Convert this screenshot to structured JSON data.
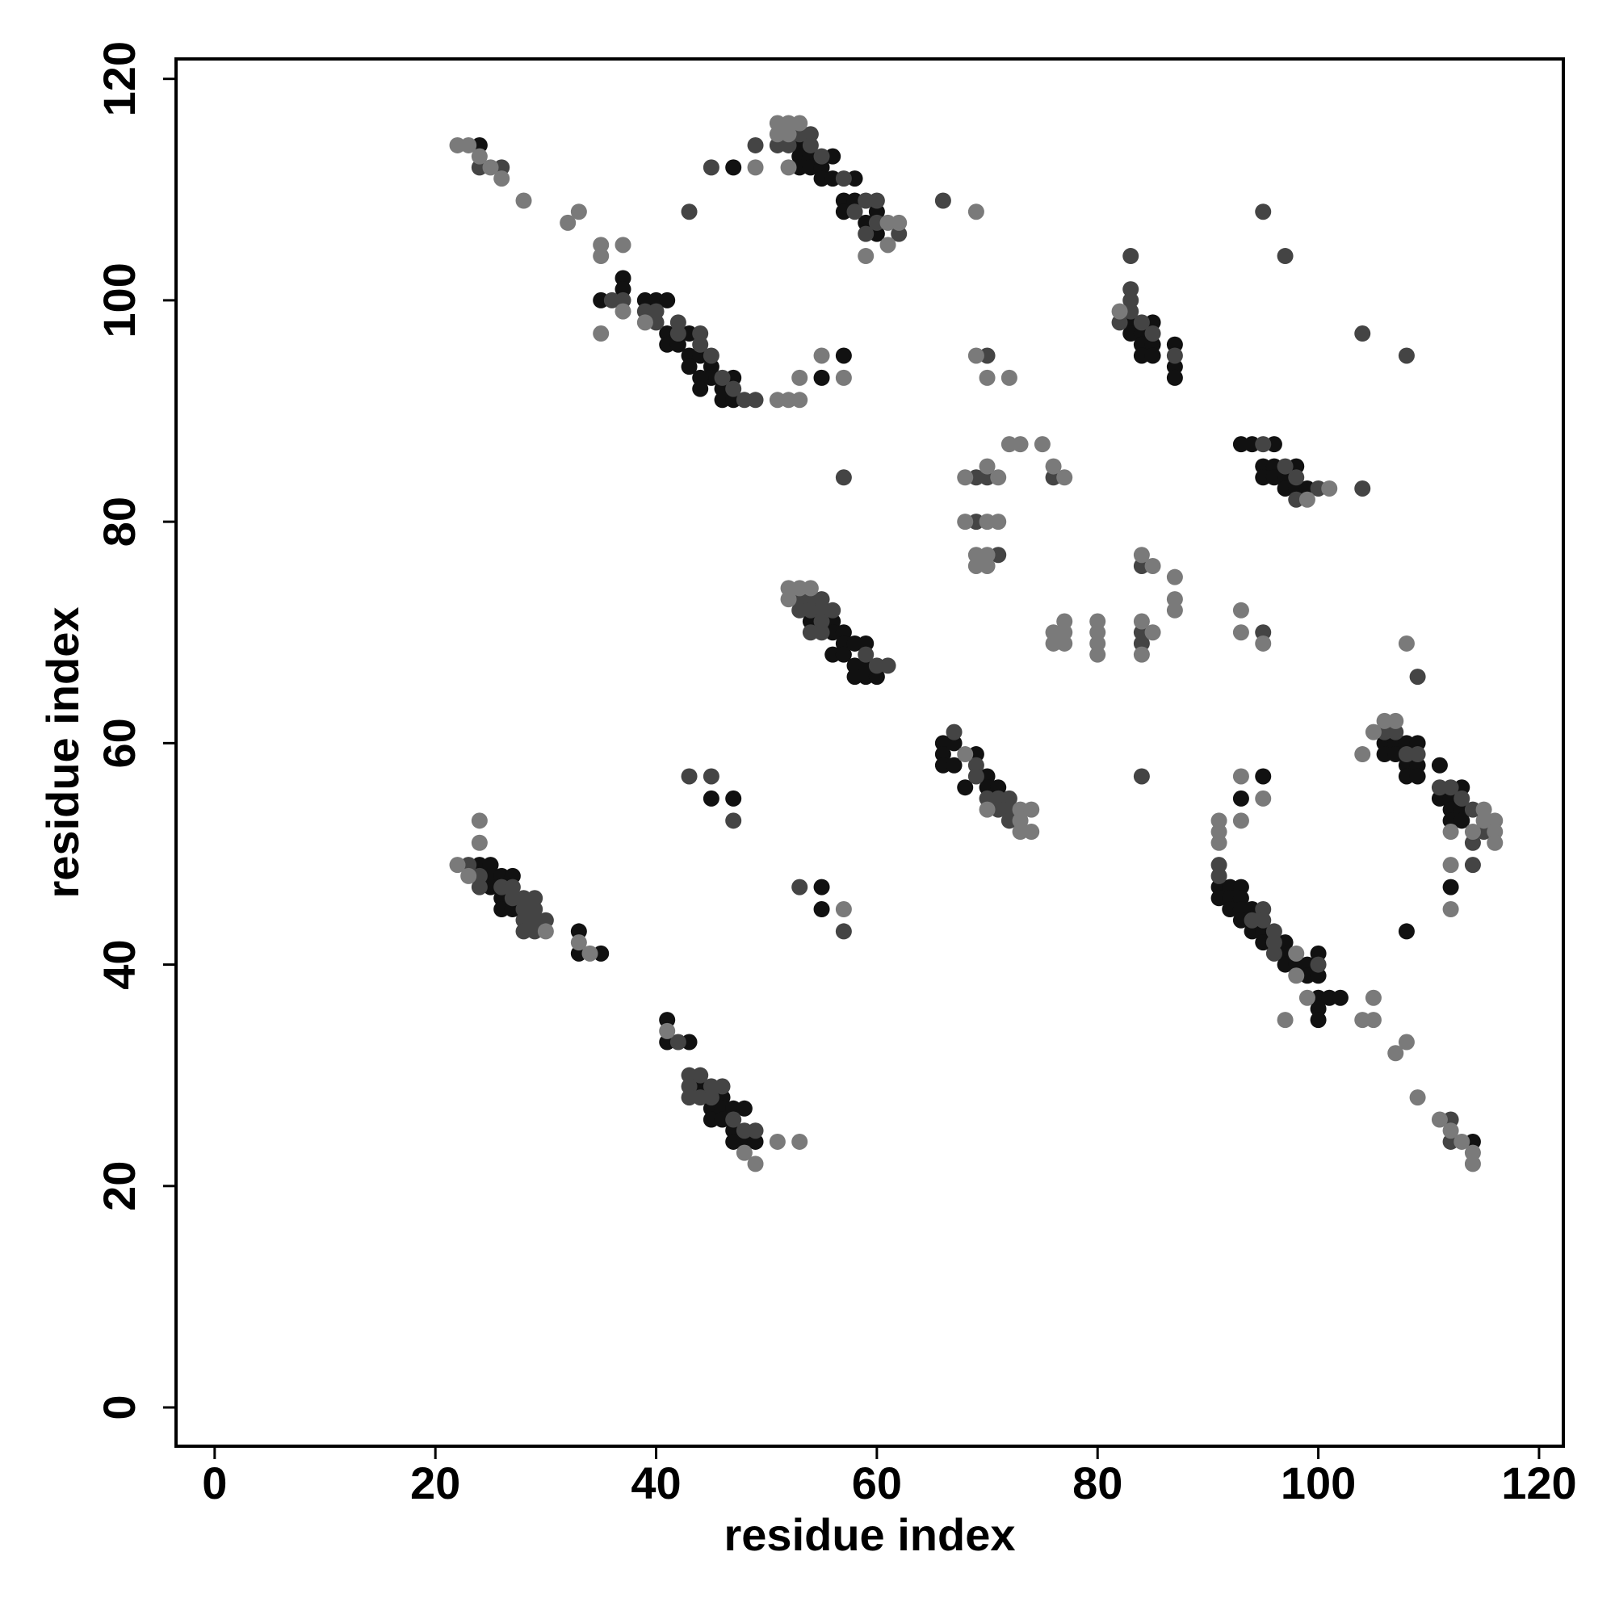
{
  "chart_data": {
    "type": "scatter",
    "xlabel": "residue index",
    "ylabel": "residue index",
    "xlim": [
      -3.5,
      122.2
    ],
    "ylim": [
      -3.5,
      121.8
    ],
    "xticks": [
      0,
      20,
      40,
      60,
      80,
      100,
      120
    ],
    "yticks": [
      0,
      20,
      40,
      60,
      80,
      100,
      120
    ],
    "grid": false,
    "series": [
      {
        "color": "#111111",
        "x": [
          24,
          47,
          35,
          37,
          37,
          39,
          40,
          41,
          41,
          41,
          42,
          43,
          43,
          43,
          44,
          45,
          45,
          44,
          44,
          46,
          46,
          47,
          47,
          53,
          53,
          53,
          54,
          54,
          55,
          55,
          56,
          56,
          58,
          57,
          57,
          58,
          59,
          60,
          60,
          55,
          57,
          54,
          56,
          56,
          57,
          56,
          57,
          57,
          58,
          58,
          58,
          59,
          59,
          59,
          60,
          66,
          66,
          66,
          67,
          67,
          68,
          69,
          70,
          70,
          71,
          83,
          83,
          84,
          85,
          84,
          85,
          84,
          85,
          87,
          87,
          87,
          93,
          94,
          96,
          95,
          95,
          96,
          96,
          97,
          97,
          98,
          98,
          99,
          93,
          95,
          91,
          91,
          92,
          92,
          92,
          93,
          93,
          93,
          93,
          94,
          94,
          95,
          95,
          97,
          97,
          97,
          98,
          99,
          99,
          100,
          100,
          100,
          100,
          100,
          101,
          102,
          108,
          106,
          106,
          107,
          107,
          108,
          108,
          108,
          109,
          109,
          109,
          111,
          111,
          112,
          112,
          112,
          113,
          113,
          113,
          112,
          114,
          24,
          25,
          25,
          25,
          26,
          26,
          26,
          27,
          27,
          33,
          33,
          35,
          45,
          47,
          55,
          55,
          41,
          41,
          43,
          44,
          45,
          45,
          46,
          46,
          46,
          47,
          47,
          47,
          48,
          48,
          49
        ],
        "y": [
          114,
          112,
          100,
          102,
          101,
          100,
          100,
          100,
          97,
          96,
          96,
          97,
          95,
          94,
          95,
          94,
          93,
          93,
          92,
          92,
          91,
          93,
          91,
          114,
          113,
          112,
          113,
          112,
          112,
          111,
          113,
          111,
          111,
          109,
          108,
          109,
          107,
          108,
          106,
          93,
          95,
          71,
          71,
          70,
          70,
          68,
          69,
          68,
          69,
          67,
          66,
          69,
          67,
          66,
          66,
          60,
          59,
          58,
          60,
          58,
          56,
          59,
          57,
          56,
          56,
          98,
          97,
          97,
          98,
          96,
          96,
          95,
          95,
          96,
          94,
          93,
          87,
          87,
          87,
          85,
          84,
          85,
          84,
          84,
          83,
          85,
          83,
          83,
          55,
          57,
          47,
          46,
          47,
          46,
          45,
          47,
          46,
          45,
          44,
          45,
          43,
          43,
          42,
          42,
          41,
          40,
          40,
          40,
          39,
          41,
          39,
          37,
          36,
          35,
          37,
          37,
          43,
          60,
          59,
          60,
          59,
          60,
          58,
          57,
          60,
          58,
          57,
          58,
          55,
          55,
          54,
          53,
          56,
          54,
          53,
          47,
          24,
          49,
          49,
          48,
          47,
          48,
          46,
          45,
          48,
          45,
          43,
          41,
          41,
          55,
          55,
          47,
          45,
          35,
          33,
          33,
          29,
          27,
          26,
          28,
          27,
          26,
          27,
          25,
          24,
          27,
          24,
          24
        ]
      },
      {
        "color": "#444444",
        "x": [
          24,
          26,
          36,
          37,
          39,
          40,
          40,
          42,
          42,
          44,
          44,
          45,
          46,
          47,
          48,
          49,
          43,
          45,
          49,
          53,
          54,
          51,
          52,
          54,
          55,
          57,
          58,
          59,
          60,
          60,
          62,
          59,
          57,
          53,
          54,
          55,
          53,
          54,
          55,
          56,
          55,
          54,
          55,
          59,
          60,
          61,
          67,
          69,
          69,
          70,
          71,
          71,
          72,
          72,
          72,
          70,
          69,
          70,
          76,
          69,
          71,
          66,
          84,
          84,
          84,
          84,
          83,
          83,
          83,
          83,
          82,
          84,
          85,
          87,
          95,
          97,
          98,
          98,
          100,
          104,
          95,
          97,
          104,
          108,
          95,
          109,
          91,
          91,
          94,
          95,
          95,
          96,
          96,
          96,
          100,
          106,
          107,
          108,
          109,
          111,
          112,
          113,
          114,
          114,
          115,
          114,
          112,
          112,
          23,
          24,
          24,
          26,
          27,
          27,
          28,
          28,
          28,
          28,
          29,
          29,
          29,
          29,
          30,
          43,
          45,
          47,
          53,
          57,
          42,
          43,
          43,
          43,
          44,
          44,
          45,
          45,
          46,
          47,
          48,
          49
        ],
        "y": [
          112,
          112,
          100,
          100,
          99,
          99,
          98,
          98,
          97,
          97,
          96,
          95,
          93,
          92,
          91,
          91,
          108,
          112,
          114,
          115,
          115,
          114,
          114,
          114,
          113,
          111,
          108,
          109,
          109,
          107,
          106,
          106,
          84,
          73,
          73,
          73,
          72,
          72,
          72,
          72,
          71,
          70,
          70,
          68,
          67,
          67,
          61,
          58,
          57,
          55,
          55,
          54,
          55,
          54,
          53,
          95,
          84,
          84,
          84,
          80,
          77,
          109,
          70,
          69,
          76,
          57,
          104,
          101,
          100,
          99,
          98,
          98,
          97,
          95,
          87,
          85,
          84,
          82,
          83,
          83,
          108,
          104,
          97,
          95,
          70,
          66,
          49,
          48,
          44,
          45,
          44,
          43,
          42,
          41,
          40,
          61,
          61,
          59,
          59,
          56,
          56,
          55,
          54,
          51,
          52,
          49,
          26,
          24,
          49,
          48,
          47,
          47,
          47,
          46,
          46,
          45,
          44,
          43,
          46,
          45,
          44,
          43,
          44,
          57,
          57,
          53,
          47,
          43,
          33,
          30,
          29,
          28,
          30,
          28,
          29,
          28,
          29,
          26,
          25,
          25
        ]
      },
      {
        "color": "#7a7a7a",
        "x": [
          22,
          23,
          24,
          25,
          26,
          28,
          32,
          33,
          35,
          35,
          37,
          35,
          37,
          39,
          49,
          51,
          52,
          53,
          51,
          52,
          52,
          61,
          61,
          62,
          59,
          51,
          52,
          53,
          53,
          55,
          57,
          52,
          53,
          54,
          52,
          68,
          70,
          73,
          73,
          73,
          74,
          74,
          69,
          70,
          72,
          68,
          70,
          71,
          72,
          73,
          75,
          76,
          77,
          68,
          70,
          71,
          69,
          69,
          70,
          70,
          69,
          76,
          76,
          77,
          77,
          77,
          80,
          80,
          80,
          80,
          84,
          84,
          85,
          84,
          85,
          87,
          87,
          87,
          82,
          99,
          101,
          91,
          91,
          91,
          93,
          93,
          95,
          93,
          93,
          95,
          108,
          98,
          98,
          99,
          97,
          104,
          105,
          105,
          107,
          108,
          109,
          104,
          105,
          106,
          107,
          114,
          115,
          115,
          116,
          116,
          116,
          112,
          112,
          112,
          111,
          112,
          113,
          114,
          114,
          22,
          23,
          30,
          33,
          34,
          24,
          24,
          57,
          41,
          48,
          49,
          51,
          53
        ],
        "y": [
          114,
          114,
          113,
          112,
          111,
          109,
          107,
          108,
          105,
          104,
          105,
          97,
          99,
          98,
          112,
          116,
          116,
          116,
          115,
          115,
          112,
          107,
          105,
          107,
          104,
          91,
          91,
          91,
          93,
          95,
          93,
          74,
          74,
          74,
          73,
          59,
          54,
          54,
          53,
          52,
          54,
          52,
          95,
          93,
          93,
          84,
          85,
          84,
          87,
          87,
          87,
          85,
          84,
          80,
          80,
          80,
          77,
          76,
          77,
          76,
          108,
          70,
          69,
          71,
          70,
          69,
          71,
          70,
          69,
          68,
          71,
          68,
          70,
          77,
          76,
          75,
          73,
          72,
          99,
          82,
          83,
          53,
          52,
          51,
          57,
          53,
          55,
          72,
          70,
          69,
          69,
          41,
          39,
          37,
          35,
          35,
          37,
          35,
          32,
          33,
          28,
          59,
          61,
          62,
          62,
          52,
          54,
          53,
          53,
          52,
          51,
          52,
          49,
          45,
          26,
          25,
          24,
          23,
          22,
          49,
          48,
          43,
          42,
          41,
          53,
          51,
          45,
          34,
          23,
          22,
          24,
          24
        ]
      }
    ]
  }
}
